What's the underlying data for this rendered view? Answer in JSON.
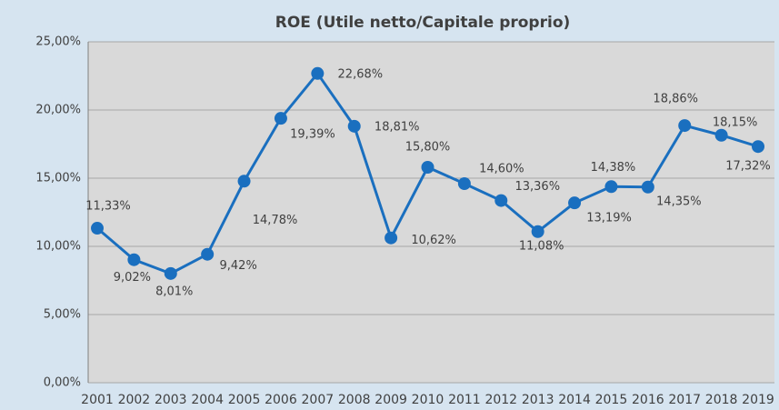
{
  "chart_data": {
    "type": "line",
    "title": "ROE (Utile netto/Capitale proprio)",
    "categories": [
      "2001",
      "2002",
      "2003",
      "2004",
      "2005",
      "2006",
      "2007",
      "2008",
      "2009",
      "2010",
      "2011",
      "2012",
      "2013",
      "2014",
      "2015",
      "2016",
      "2017",
      "2018",
      "2019"
    ],
    "series": [
      {
        "name": "ROE",
        "color": "#1a6fbf",
        "values": [
          11.33,
          9.02,
          8.01,
          9.42,
          14.78,
          19.39,
          22.68,
          18.81,
          10.62,
          15.8,
          14.6,
          13.36,
          11.08,
          13.19,
          14.38,
          14.35,
          18.86,
          18.15,
          17.32
        ],
        "value_labels": [
          "11,33%",
          "9,02%",
          "8,01%",
          "9,42%",
          "14,78%",
          "19,39%",
          "22,68%",
          "18,81%",
          "10,62%",
          "15,80%",
          "14,60%",
          "13,36%",
          "11,08%",
          "13,19%",
          "14,38%",
          "14,35%",
          "18,86%",
          "18,15%",
          "17,32%"
        ]
      }
    ],
    "ylim": [
      0,
      25
    ],
    "yticks": [
      {
        "value": 0,
        "label": "0,00%"
      },
      {
        "value": 5,
        "label": "5,00%"
      },
      {
        "value": 10,
        "label": "10,00%"
      },
      {
        "value": 15,
        "label": "15,00%"
      },
      {
        "value": 20,
        "label": "20,00%"
      },
      {
        "value": 25,
        "label": "25,00%"
      }
    ],
    "grid": true
  }
}
